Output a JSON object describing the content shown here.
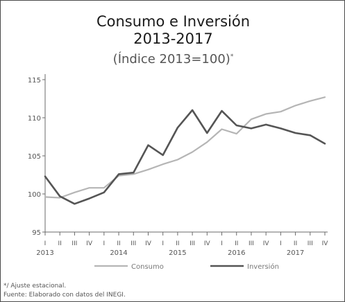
{
  "chart_data": {
    "type": "line",
    "title": "Consumo e Inversión",
    "title_line2": "2013-2017",
    "subtitle": "(Índice 2013=100)",
    "subtitle_mark": "*",
    "ylim": [
      95,
      115
    ],
    "yticks": [
      95,
      100,
      105,
      110,
      115
    ],
    "quarter_labels": [
      "I",
      "II",
      "III",
      "IV",
      "I",
      "II",
      "III",
      "IV",
      "I",
      "II",
      "III",
      "IV",
      "I",
      "II",
      "III",
      "IV",
      "I",
      "II",
      "III",
      "IV"
    ],
    "years": [
      {
        "label": "2013",
        "at_index": 0
      },
      {
        "label": "2014",
        "at_index": 5
      },
      {
        "label": "2015",
        "at_index": 9
      },
      {
        "label": "2016",
        "at_index": 13
      },
      {
        "label": "2017",
        "at_index": 17
      }
    ],
    "grid": false,
    "legend_position": "bottom",
    "series": [
      {
        "name": "Consumo",
        "color": "#b5b5b5",
        "values": [
          99.6,
          99.5,
          100.2,
          100.8,
          100.8,
          102.4,
          102.6,
          103.2,
          103.9,
          104.5,
          105.5,
          106.8,
          108.5,
          107.9,
          109.8,
          110.5,
          110.8,
          111.6,
          112.2,
          112.7
        ]
      },
      {
        "name": "Inversión",
        "color": "#555555",
        "values": [
          102.3,
          99.7,
          98.7,
          99.4,
          100.2,
          102.6,
          102.8,
          106.4,
          105.1,
          108.7,
          111.0,
          108.0,
          110.9,
          109.0,
          108.6,
          109.1,
          108.6,
          108.0,
          107.7,
          106.6
        ]
      }
    ]
  },
  "notes": {
    "footnote": "*/ Ajuste estacional.",
    "source": "Fuente: Elaborado con datos del INEGI."
  }
}
